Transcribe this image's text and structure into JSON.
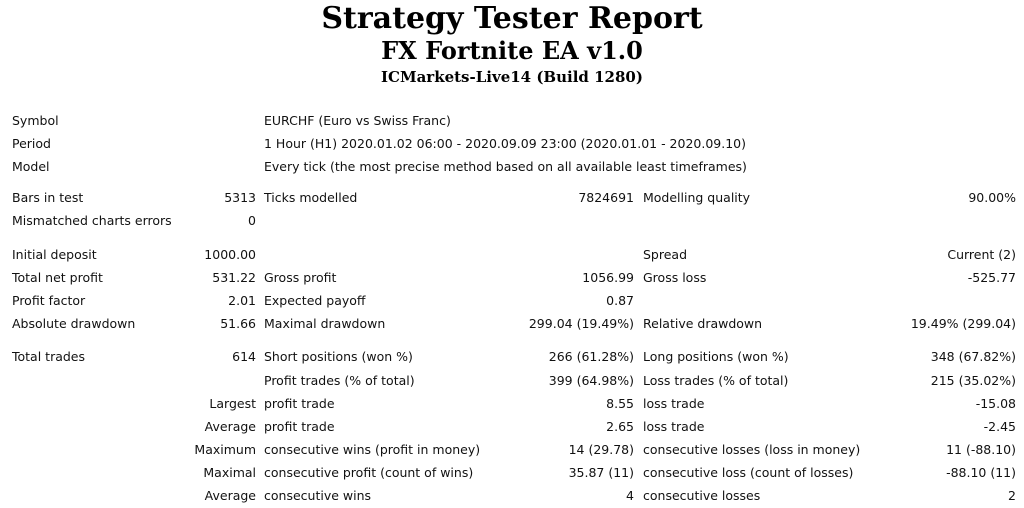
{
  "header": {
    "title": "Strategy Tester Report",
    "expert": "FX Fortnite EA v1.0",
    "server": "ICMarkets-Live14 (Build 1280)"
  },
  "info": {
    "symbol_label": "Symbol",
    "symbol_value": "EURCHF (Euro vs Swiss Franc)",
    "period_label": "Period",
    "period_value": "1 Hour (H1) 2020.01.02 06:00 - 2020.09.09 23:00 (2020.01.01 - 2020.09.10)",
    "model_label": "Model",
    "model_value": "Every tick (the most precise method based on all available least timeframes)"
  },
  "stats": {
    "bars_label": "Bars in test",
    "bars_value": "5313",
    "ticks_label": "Ticks modelled",
    "ticks_value": "7824691",
    "quality_label": "Modelling quality",
    "quality_value": "90.00%",
    "mismatch_label": "Mismatched charts errors",
    "mismatch_value": "0",
    "deposit_label": "Initial deposit",
    "deposit_value": "1000.00",
    "spread_label": "Spread",
    "spread_value": "Current (2)",
    "netprofit_label": "Total net profit",
    "netprofit_value": "531.22",
    "grossprofit_label": "Gross profit",
    "grossprofit_value": "1056.99",
    "grossloss_label": "Gross loss",
    "grossloss_value": "-525.77",
    "pf_label": "Profit factor",
    "pf_value": "2.01",
    "payoff_label": "Expected payoff",
    "payoff_value": "0.87",
    "absdd_label": "Absolute drawdown",
    "absdd_value": "51.66",
    "maxdd_label": "Maximal drawdown",
    "maxdd_value": "299.04 (19.49%)",
    "reldd_label": "Relative drawdown",
    "reldd_value": "19.49% (299.04)"
  },
  "trades": {
    "total_label": "Total trades",
    "total_value": "614",
    "short_label": "Short positions (won %)",
    "short_value": "266 (61.28%)",
    "long_label": "Long positions (won %)",
    "long_value": "348 (67.82%)",
    "profit_trades_label": "Profit trades (% of total)",
    "profit_trades_value": "399 (64.98%)",
    "loss_trades_label": "Loss trades (% of total)",
    "loss_trades_value": "215 (35.02%)",
    "largest_label": "Largest",
    "largest_profit_label": "profit trade",
    "largest_profit_value": "8.55",
    "largest_loss_label": "loss trade",
    "largest_loss_value": "-15.08",
    "average_label": "Average",
    "average_profit_label": "profit trade",
    "average_profit_value": "2.65",
    "average_loss_label": "loss trade",
    "average_loss_value": "-2.45",
    "maximum_label": "Maximum",
    "max_wins_label": "consecutive wins (profit in money)",
    "max_wins_value": "14 (29.78)",
    "max_losses_label": "consecutive losses (loss in money)",
    "max_losses_value": "11 (-88.10)",
    "maximal_label": "Maximal",
    "maximal_profit_label": "consecutive profit (count of wins)",
    "maximal_profit_value": "35.87 (11)",
    "maximal_loss_label": "consecutive loss (count of losses)",
    "maximal_loss_value": "-88.10 (11)",
    "avg_consec_label": "Average",
    "avg_wins_label": "consecutive wins",
    "avg_wins_value": "4",
    "avg_losses_label": "consecutive losses",
    "avg_losses_value": "2"
  }
}
